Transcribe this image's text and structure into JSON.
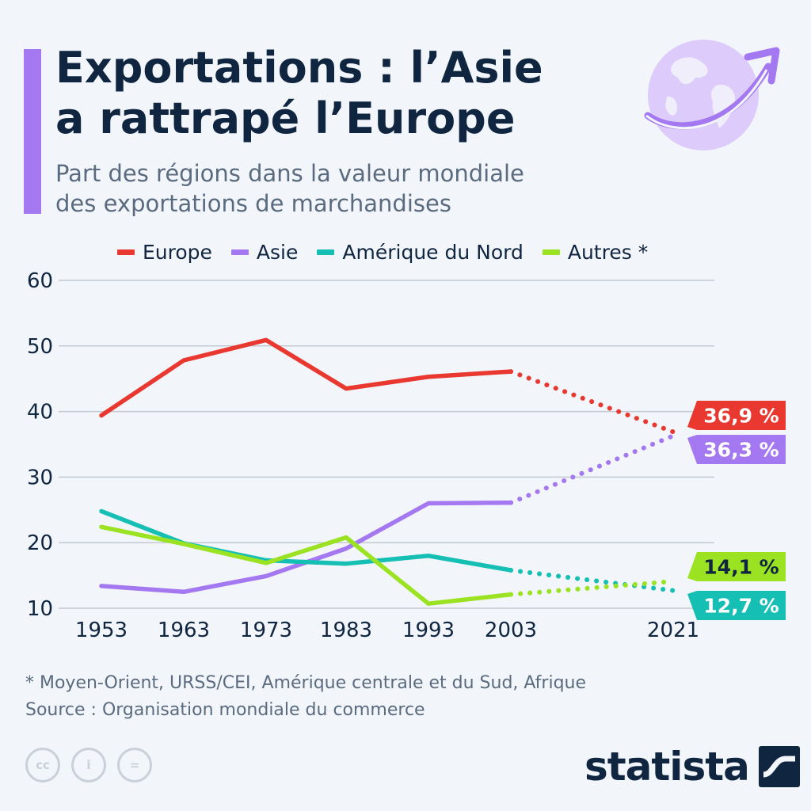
{
  "header": {
    "title_line1": "Exportations : l’Asie",
    "title_line2": "a rattrapé l’Europe",
    "subtitle_line1": "Part des régions dans la valeur mondiale",
    "subtitle_line2": "des exportations de marchandises",
    "accent_color": "#a478f0",
    "icon": "globe-arrow-icon"
  },
  "chart_data": {
    "type": "line",
    "title": "Exportations : l’Asie a rattrapé l’Europe",
    "subtitle": "Part des régions dans la valeur mondiale des exportations de marchandises",
    "xlabel": "",
    "ylabel": "",
    "x": [
      1953,
      1963,
      1973,
      1983,
      1993,
      2003,
      2021
    ],
    "ylim": [
      10,
      60
    ],
    "yticks": [
      10,
      20,
      30,
      40,
      50,
      60
    ],
    "grid": true,
    "legend_position": "top",
    "projection_note": "segment 2003–2021 drawn dotted",
    "series": [
      {
        "name": "Europe",
        "color": "#e8382f",
        "values": [
          39.4,
          47.8,
          50.9,
          43.5,
          45.3,
          46.1,
          36.9
        ],
        "end_label": "36,9 %",
        "label_text_color": "#ffffff"
      },
      {
        "name": "Asie",
        "color": "#a478f0",
        "values": [
          13.4,
          12.5,
          14.9,
          19.1,
          26.0,
          26.1,
          36.3
        ],
        "end_label": "36,3 %",
        "label_text_color": "#ffffff"
      },
      {
        "name": "Amérique du Nord",
        "color": "#16bfb3",
        "values": [
          24.8,
          19.9,
          17.3,
          16.8,
          18.0,
          15.8,
          12.7
        ],
        "end_label": "12,7 %",
        "label_text_color": "#ffffff"
      },
      {
        "name": "Autres *",
        "color": "#9be322",
        "values": [
          22.4,
          19.8,
          16.9,
          20.8,
          10.7,
          12.1,
          14.1
        ],
        "end_label": "14,1 %",
        "label_text_color": "#0f2540"
      }
    ]
  },
  "footer": {
    "footnote": "* Moyen-Orient, URSS/CEI, Amérique centrale et du Sud, Afrique",
    "source": "Source : Organisation mondiale du commerce",
    "license_icons": [
      "cc-icon",
      "attribution-icon",
      "no-derivatives-icon"
    ],
    "license_glyphs": [
      "cc",
      "i",
      "="
    ],
    "brand": "statista"
  }
}
